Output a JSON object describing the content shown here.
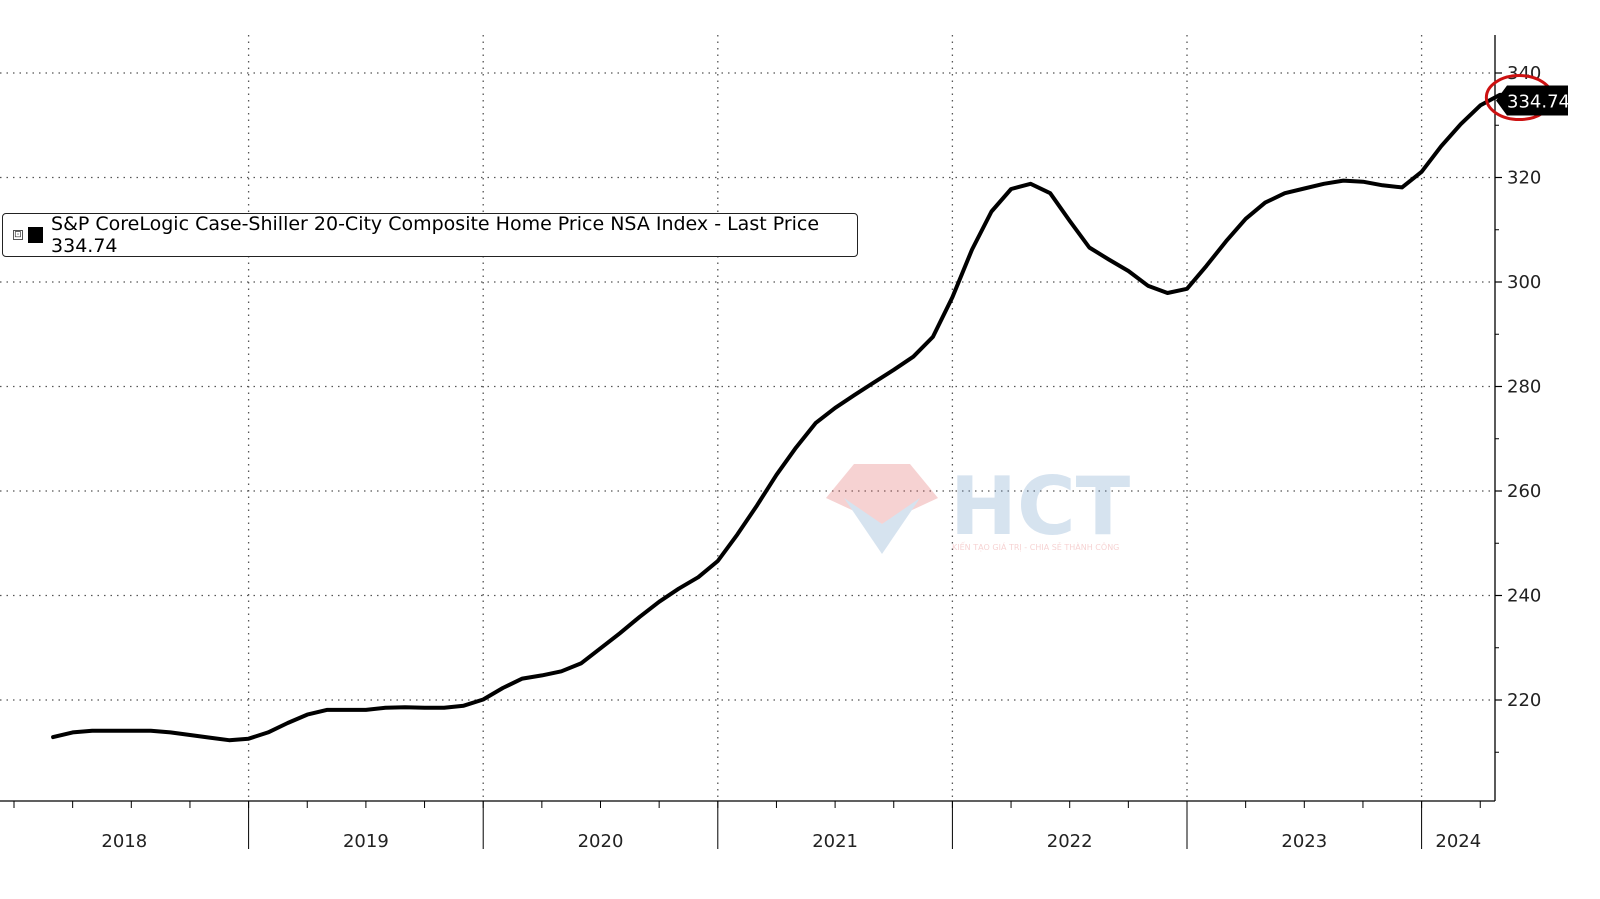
{
  "legend": {
    "expand_glyph": "⊡",
    "label": "S&P CoreLogic Case-Shiller 20-City Composite Home Price NSA Index - Last Price 334.74"
  },
  "last_value_label": "334.74",
  "watermark": {
    "brand": "HCT",
    "tagline": "KIẾN TẠO GIÁ TRỊ - CHIA SẺ THÀNH CÔNG",
    "colors": {
      "red": "#e06060",
      "blue": "#6f9cc9"
    }
  },
  "colors": {
    "line": "#000000",
    "grid": "#555555",
    "highlight_circle": "#cc1111",
    "tag_bg": "#000000",
    "tag_text": "#ffffff"
  },
  "chart_data": {
    "type": "line",
    "title": "",
    "xlabel": "",
    "ylabel": "",
    "ylim": [
      200,
      342
    ],
    "yticks": [
      220,
      240,
      260,
      280,
      300,
      320,
      340
    ],
    "year_labels": [
      "2018",
      "2019",
      "2020",
      "2021",
      "2022",
      "2023",
      "2024"
    ],
    "grid": "dotted",
    "legend_position": "upper-left",
    "series": [
      {
        "name": "S&P CoreLogic Case-Shiller 20-City Composite Home Price NSA Index",
        "last": 334.74,
        "x": [
          "2018-03",
          "2018-04",
          "2018-05",
          "2018-06",
          "2018-07",
          "2018-08",
          "2018-09",
          "2018-10",
          "2018-11",
          "2018-12",
          "2019-01",
          "2019-02",
          "2019-03",
          "2019-04",
          "2019-05",
          "2019-06",
          "2019-07",
          "2019-08",
          "2019-09",
          "2019-10",
          "2019-11",
          "2019-12",
          "2020-01",
          "2020-02",
          "2020-03",
          "2020-04",
          "2020-05",
          "2020-06",
          "2020-07",
          "2020-08",
          "2020-09",
          "2020-10",
          "2020-11",
          "2020-12",
          "2021-01",
          "2021-02",
          "2021-03",
          "2021-04",
          "2021-05",
          "2021-06",
          "2021-07",
          "2021-08",
          "2021-09",
          "2021-10",
          "2021-11",
          "2021-12",
          "2022-01",
          "2022-02",
          "2022-03",
          "2022-04",
          "2022-05",
          "2022-06",
          "2022-07",
          "2022-08",
          "2022-09",
          "2022-10",
          "2022-11",
          "2022-12",
          "2023-01",
          "2023-02",
          "2023-03",
          "2023-04",
          "2023-05",
          "2023-06",
          "2023-07",
          "2023-08",
          "2023-09",
          "2023-10",
          "2023-11",
          "2023-12",
          "2024-01",
          "2024-02",
          "2024-03",
          "2024-04",
          "2024-05",
          "2024-06",
          "2024-07",
          "2024-08"
        ],
        "values": [
          212.9,
          213.8,
          214.1,
          214.1,
          214.1,
          214.1,
          213.8,
          213.3,
          212.8,
          212.3,
          212.6,
          213.8,
          215.6,
          217.2,
          218.1,
          218.1,
          218.1,
          218.5,
          218.6,
          218.5,
          218.5,
          218.9,
          220.1,
          222.3,
          224.1,
          224.7,
          225.5,
          227.0,
          229.9,
          232.8,
          235.9,
          238.8,
          241.3,
          243.5,
          246.6,
          251.7,
          257.2,
          263.1,
          268.3,
          273.0,
          275.9,
          278.4,
          280.8,
          283.2,
          285.7,
          289.5,
          297.1,
          306.2,
          313.5,
          317.8,
          318.8,
          317.0,
          311.7,
          306.6,
          304.3,
          302.1,
          299.3,
          297.9,
          298.7,
          303.1,
          307.8,
          312.1,
          315.2,
          317.0,
          317.9,
          318.8,
          319.4,
          319.2,
          318.5,
          318.1,
          321.1,
          326.0,
          330.2,
          333.8,
          335.8,
          335.9,
          335.5,
          334.74
        ]
      }
    ],
    "annotations": [
      {
        "type": "circle",
        "x": "2024-06",
        "y": 335.3,
        "label": ""
      }
    ]
  }
}
